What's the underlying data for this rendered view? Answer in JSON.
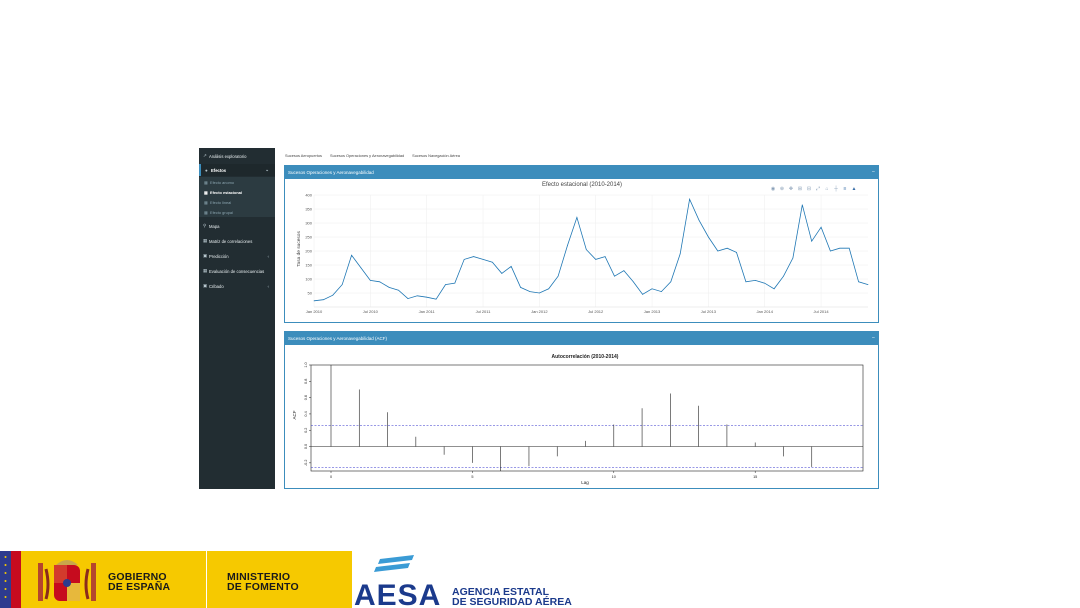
{
  "sidebar": {
    "items": [
      {
        "icon": "chart-line-icon",
        "glyph": "↗",
        "label": "Análisis exploratorio"
      },
      {
        "icon": "pie-chart-icon",
        "glyph": "●",
        "label": "Efectos",
        "chevron": "⌄"
      },
      {
        "icon": "map-marker-icon",
        "glyph": "⚲",
        "label": "Mapa"
      },
      {
        "icon": "table-icon",
        "glyph": "▦",
        "label": "Matriz de correlaciones"
      },
      {
        "icon": "briefcase-icon",
        "glyph": "▣",
        "label": "Predicción",
        "chevron": "‹"
      },
      {
        "icon": "table-icon",
        "glyph": "▦",
        "label": "Evaluación de consecuencias"
      },
      {
        "icon": "briefcase-icon",
        "glyph": "▣",
        "label": "Cribado",
        "chevron": "‹"
      }
    ],
    "subitems": [
      {
        "glyph": "▦",
        "label": "Efecto anomo"
      },
      {
        "glyph": "▦",
        "label": "Efecto estacional"
      },
      {
        "glyph": "▦",
        "label": "Efecto lineal"
      },
      {
        "glyph": "▦",
        "label": "Efecto grupal"
      }
    ]
  },
  "tabs": [
    "Sucesos Aeropuertos",
    "Sucesos Operaciones y Aeronavegabilidad",
    "Sucesos Navegación Aérea"
  ],
  "panel1": {
    "title": "Sucesos Operaciones y Aeronavegabilidad",
    "collapse": "−"
  },
  "panel2": {
    "title": "Sucesos Operaciones y Aeronavegabilidad (ACF)",
    "collapse": "−"
  },
  "chart_data": [
    {
      "type": "line",
      "title": "Efecto estacional (2010-2014)",
      "xlabel": "",
      "ylabel": "Tasa de sucesos",
      "ylim": [
        0,
        400
      ],
      "yticks": [
        50,
        100,
        150,
        200,
        250,
        300,
        350,
        400
      ],
      "xtick_labels": [
        "Jan 2010",
        "Jul 2010",
        "Jan 2011",
        "Jul 2011",
        "Jan 2012",
        "Jul 2012",
        "Jan 2013",
        "Jul 2013",
        "Jan 2014",
        "Jul 2014"
      ],
      "x": [
        "2010-01",
        "2010-02",
        "2010-03",
        "2010-04",
        "2010-05",
        "2010-06",
        "2010-07",
        "2010-08",
        "2010-09",
        "2010-10",
        "2010-11",
        "2010-12",
        "2011-01",
        "2011-02",
        "2011-03",
        "2011-04",
        "2011-05",
        "2011-06",
        "2011-07",
        "2011-08",
        "2011-09",
        "2011-10",
        "2011-11",
        "2011-12",
        "2012-01",
        "2012-02",
        "2012-03",
        "2012-04",
        "2012-05",
        "2012-06",
        "2012-07",
        "2012-08",
        "2012-09",
        "2012-10",
        "2012-11",
        "2012-12",
        "2013-01",
        "2013-02",
        "2013-03",
        "2013-04",
        "2013-05",
        "2013-06",
        "2013-07",
        "2013-08",
        "2013-09",
        "2013-10",
        "2013-11",
        "2013-12",
        "2014-01",
        "2014-02",
        "2014-03",
        "2014-04",
        "2014-05",
        "2014-06",
        "2014-07",
        "2014-08",
        "2014-09",
        "2014-10",
        "2014-11",
        "2014-12"
      ],
      "series": [
        {
          "color": "#1f77b4",
          "values": [
            22,
            26,
            42,
            80,
            185,
            140,
            95,
            90,
            70,
            60,
            30,
            40,
            35,
            28,
            80,
            85,
            170,
            180,
            170,
            160,
            120,
            145,
            70,
            55,
            50,
            65,
            110,
            220,
            320,
            205,
            170,
            180,
            110,
            130,
            90,
            45,
            65,
            55,
            90,
            190,
            385,
            310,
            250,
            200,
            210,
            195,
            90,
            95,
            85,
            65,
            110,
            175,
            365,
            235,
            285,
            200,
            210,
            210,
            90,
            80
          ]
        }
      ],
      "toolbar_icons": [
        "camera-icon",
        "zoom-icon",
        "pan-icon",
        "zoom-in-icon",
        "zoom-out-icon",
        "autoscale-icon",
        "reset-icon",
        "spike-lines-icon",
        "compare-icon",
        "plotly-logo-icon"
      ]
    },
    {
      "type": "bar",
      "title": "Autocorrelación (2010-2014)",
      "xlabel": "Lag",
      "ylabel": "ACF",
      "ylim": [
        -0.3,
        1.0
      ],
      "yticks": [
        "-0.2",
        "0.0",
        "0.2",
        "0.4",
        "0.6",
        "0.8",
        "1.0"
      ],
      "xticks": [
        0,
        5,
        10,
        15
      ],
      "ci": 0.26,
      "x": [
        0,
        1,
        2,
        3,
        4,
        5,
        6,
        7,
        8,
        9,
        10,
        11,
        12,
        13,
        14,
        15,
        16,
        17,
        18
      ],
      "values": [
        1.0,
        0.7,
        0.42,
        0.12,
        -0.1,
        -0.2,
        -0.3,
        -0.24,
        -0.12,
        0.07,
        0.27,
        0.47,
        0.65,
        0.5,
        0.27,
        0.05,
        -0.12,
        -0.25,
        0.0
      ]
    }
  ],
  "footer": {
    "gov_line1": "GOBIERNO",
    "gov_line2": "DE ESPAÑA",
    "ministry_line1": "MINISTERIO",
    "ministry_line2": "DE FOMENTO",
    "aesa_logo_text": "AESA",
    "aesa_line1": "AGENCIA ESTATAL",
    "aesa_line2": "DE SEGURIDAD AÉREA",
    "colors": {
      "gov_band": "#f6c900",
      "eu_blue": "#2d3b8e",
      "spain_red": "#c60b1e",
      "aesa_blue": "#1b3a8c"
    }
  }
}
